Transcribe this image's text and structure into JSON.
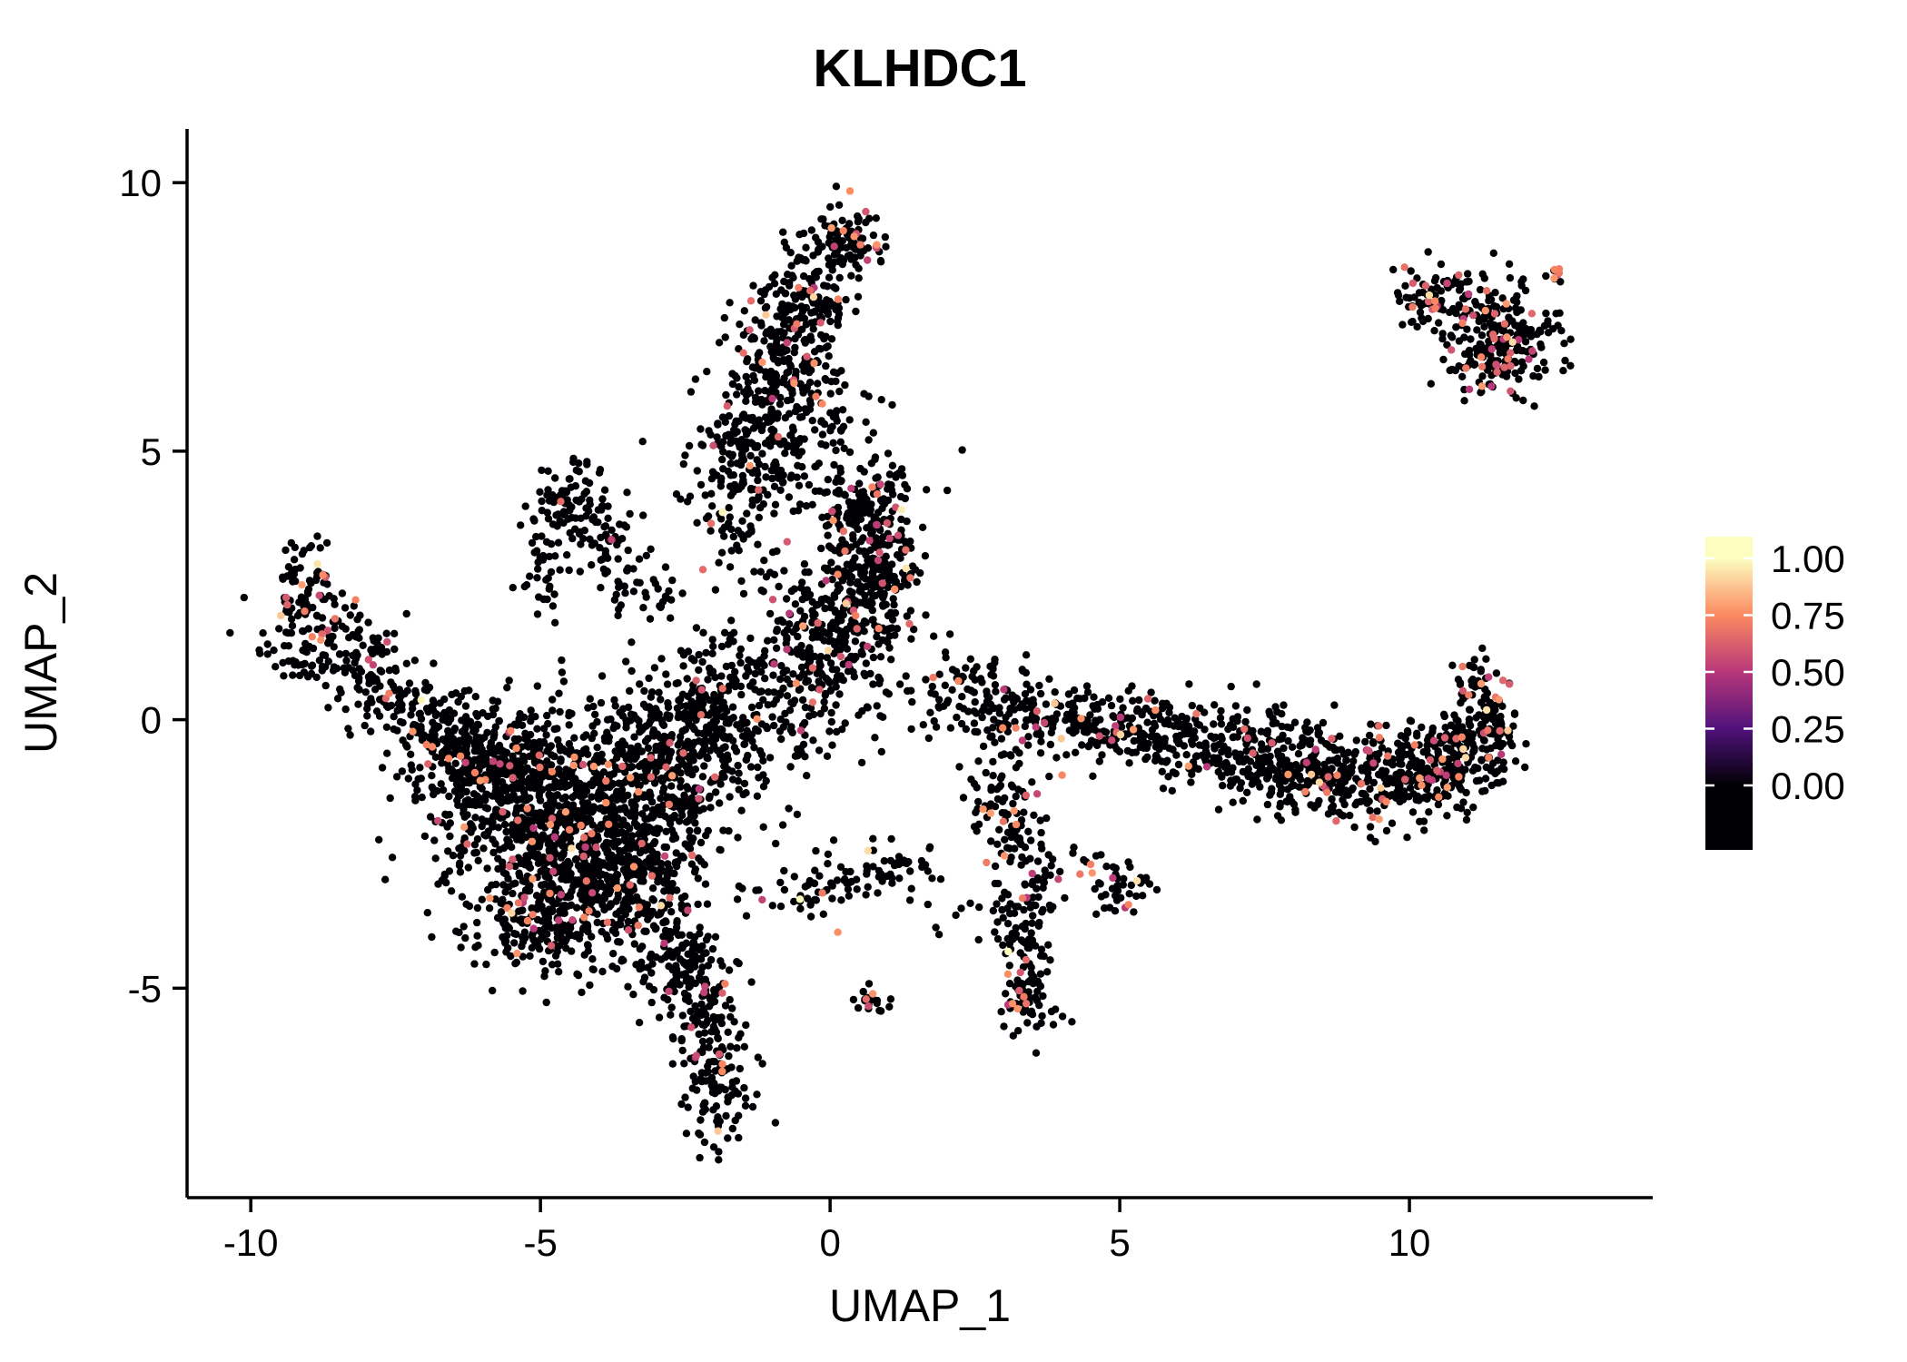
{
  "chart_data": {
    "type": "scatter",
    "title": "KLHDC1",
    "xlabel": "UMAP_1",
    "ylabel": "UMAP_2",
    "x_range": [
      -11.1,
      14.2
    ],
    "y_range": [
      -8.9,
      11.0
    ],
    "x_ticks": [
      -10,
      -5,
      0,
      5,
      10
    ],
    "x_tick_labels": [
      "-10",
      "-5",
      "0",
      "5",
      "10"
    ],
    "y_ticks": [
      -5,
      0,
      5,
      10
    ],
    "y_tick_labels": [
      "-5",
      "0",
      "5",
      "10"
    ],
    "grid": false,
    "legend_position": "right",
    "point_radius_px": 4.2,
    "colorbar": {
      "ticks": [
        0,
        0.25,
        0.5,
        0.75,
        1
      ],
      "tick_labels": [
        "0.00",
        "0.25",
        "0.50",
        "0.75",
        "1.00"
      ],
      "stops": [
        {
          "t": 0.0,
          "color": "#000004"
        },
        {
          "t": 0.25,
          "color": "#51127c"
        },
        {
          "t": 0.5,
          "color": "#b73779"
        },
        {
          "t": 0.75,
          "color": "#fc8961"
        },
        {
          "t": 1.0,
          "color": "#fcfdbf"
        }
      ]
    },
    "clusters_format": "[center_x, center_y, sigma_x, sigma_y, n_points, expressed_fraction]",
    "clusters": [
      [
        -4.6,
        -2.0,
        1.05,
        1.05,
        850,
        0.05
      ],
      [
        -5.6,
        -1.1,
        0.75,
        0.65,
        320,
        0.05
      ],
      [
        -3.6,
        -3.1,
        0.7,
        0.75,
        300,
        0.06
      ],
      [
        -4.9,
        -3.7,
        0.5,
        0.5,
        160,
        0.05
      ],
      [
        -3.0,
        -1.2,
        0.75,
        0.75,
        260,
        0.05
      ],
      [
        -6.4,
        -0.4,
        0.5,
        0.45,
        110,
        0.04
      ],
      [
        -2.6,
        -0.2,
        0.6,
        0.7,
        190,
        0.04
      ],
      [
        -1.7,
        0.5,
        0.5,
        0.7,
        140,
        0.04
      ],
      [
        -2.5,
        -4.6,
        0.4,
        0.5,
        120,
        0.05
      ],
      [
        -2.1,
        -5.8,
        0.3,
        0.55,
        100,
        0.06
      ],
      [
        -1.95,
        -7.0,
        0.28,
        0.5,
        70,
        0.05
      ],
      [
        -1.0,
        -0.2,
        0.65,
        0.8,
        60,
        0.03
      ],
      [
        -8.9,
        1.6,
        0.4,
        0.45,
        85,
        0.07
      ],
      [
        -9.1,
        2.6,
        0.28,
        0.45,
        55,
        0.06
      ],
      [
        -8.3,
        1.1,
        0.5,
        0.4,
        70,
        0.05
      ],
      [
        -7.6,
        0.55,
        0.4,
        0.35,
        55,
        0.04
      ],
      [
        -7.0,
        0.05,
        0.4,
        0.35,
        45,
        0.04
      ],
      [
        -4.4,
        4.25,
        0.3,
        0.3,
        45,
        0.03
      ],
      [
        -4.05,
        3.6,
        0.28,
        0.4,
        40,
        0.03
      ],
      [
        -4.75,
        3.5,
        0.22,
        0.45,
        35,
        0.03
      ],
      [
        -3.6,
        2.9,
        0.3,
        0.4,
        35,
        0.03
      ],
      [
        -4.95,
        2.7,
        0.18,
        0.4,
        28,
        0.03
      ],
      [
        -3.2,
        2.3,
        0.3,
        0.3,
        18,
        0.03
      ],
      [
        -1.35,
        4.7,
        0.5,
        0.5,
        110,
        0.04
      ],
      [
        -1.15,
        5.7,
        0.5,
        0.6,
        170,
        0.04
      ],
      [
        -0.75,
        6.9,
        0.45,
        0.55,
        150,
        0.05
      ],
      [
        -0.45,
        7.9,
        0.38,
        0.45,
        120,
        0.05
      ],
      [
        0.2,
        8.95,
        0.33,
        0.3,
        100,
        0.07
      ],
      [
        -1.6,
        3.6,
        0.4,
        0.6,
        55,
        0.03
      ],
      [
        0.55,
        3.95,
        0.45,
        0.45,
        150,
        0.06
      ],
      [
        0.45,
        2.05,
        0.55,
        0.55,
        210,
        0.05
      ],
      [
        0.9,
        2.95,
        0.4,
        0.45,
        110,
        0.05
      ],
      [
        -0.2,
        1.5,
        0.5,
        0.6,
        110,
        0.04
      ],
      [
        0.0,
        0.4,
        0.5,
        0.5,
        70,
        0.03
      ],
      [
        0.3,
        5.3,
        0.6,
        0.5,
        40,
        0.03
      ],
      [
        1.6,
        0.4,
        0.5,
        0.45,
        30,
        0.03
      ],
      [
        11.3,
        7.3,
        0.5,
        0.5,
        170,
        0.12
      ],
      [
        10.45,
        7.9,
        0.4,
        0.3,
        65,
        0.12
      ],
      [
        12.0,
        7.0,
        0.38,
        0.38,
        55,
        0.1
      ],
      [
        11.5,
        6.5,
        0.3,
        0.28,
        45,
        0.1
      ],
      [
        12.55,
        8.3,
        0.12,
        0.12,
        8,
        0.3
      ],
      [
        2.5,
        0.45,
        0.4,
        0.45,
        45,
        0.05
      ],
      [
        3.3,
        0.2,
        0.5,
        0.4,
        85,
        0.07
      ],
      [
        4.3,
        0.0,
        0.5,
        0.38,
        90,
        0.07
      ],
      [
        5.3,
        -0.2,
        0.5,
        0.35,
        100,
        0.07
      ],
      [
        6.3,
        -0.5,
        0.5,
        0.38,
        110,
        0.07
      ],
      [
        7.3,
        -0.7,
        0.5,
        0.4,
        130,
        0.08
      ],
      [
        8.3,
        -0.9,
        0.5,
        0.42,
        150,
        0.08
      ],
      [
        9.3,
        -1.05,
        0.5,
        0.4,
        155,
        0.08
      ],
      [
        10.2,
        -0.95,
        0.45,
        0.42,
        155,
        0.08
      ],
      [
        11.0,
        -0.65,
        0.38,
        0.45,
        140,
        0.08
      ],
      [
        11.45,
        -0.1,
        0.22,
        0.4,
        60,
        0.08
      ],
      [
        11.15,
        0.65,
        0.18,
        0.3,
        35,
        0.1
      ],
      [
        3.0,
        -1.1,
        0.4,
        0.45,
        35,
        0.05
      ],
      [
        -0.5,
        -3.25,
        0.4,
        0.28,
        35,
        0.05
      ],
      [
        0.2,
        -2.95,
        0.38,
        0.25,
        30,
        0.05
      ],
      [
        0.9,
        -2.7,
        0.33,
        0.22,
        22,
        0.05
      ],
      [
        1.55,
        -2.6,
        0.25,
        0.18,
        12,
        0.05
      ],
      [
        2.0,
        -3.5,
        0.35,
        0.25,
        8,
        0.05
      ],
      [
        0.72,
        -5.2,
        0.16,
        0.14,
        22,
        0.1
      ],
      [
        3.4,
        -4.95,
        0.28,
        0.5,
        85,
        0.08
      ],
      [
        3.3,
        -3.95,
        0.25,
        0.4,
        48,
        0.06
      ],
      [
        3.5,
        -3.0,
        0.28,
        0.4,
        42,
        0.06
      ],
      [
        3.2,
        -2.2,
        0.28,
        0.35,
        36,
        0.05
      ],
      [
        2.95,
        -1.6,
        0.28,
        0.28,
        26,
        0.05
      ],
      [
        5.0,
        -3.1,
        0.28,
        0.28,
        42,
        0.12
      ],
      [
        4.3,
        -2.7,
        0.35,
        0.25,
        12,
        0.05
      ]
    ]
  }
}
